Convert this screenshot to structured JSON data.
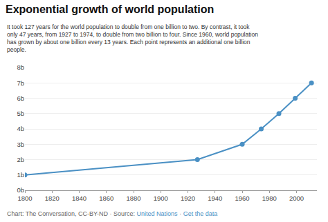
{
  "chart_data": {
    "type": "line",
    "title": "Exponential growth of world population",
    "subtitle": [
      "It took 127 years for the world population to double from one billion to two. By contrast, it took",
      "only 47 years, from 1927 to 1974, to double from two billion to four. Since 1960, world population",
      "has grown by about one billion every 13 years. Each point represents an additional one billion",
      "people."
    ],
    "footer": [
      {
        "text": "Chart: The Conversation, CC-BY-ND · Source: ",
        "color": "#666666"
      },
      {
        "text": "United Nations",
        "color": "#4a90c4"
      },
      {
        "text": " · ",
        "color": "#666666"
      },
      {
        "text": "Get the data",
        "color": "#4a90c4"
      }
    ],
    "x": [
      1800,
      1927,
      1960,
      1974,
      1987,
      1999,
      2011
    ],
    "values": [
      1,
      2,
      3,
      4,
      5,
      6,
      7
    ],
    "color": "#4a90c4",
    "marker": "circle",
    "xlim": [
      1800,
      2015
    ],
    "ylim": [
      0,
      8
    ],
    "xticks": [
      1800,
      1820,
      1840,
      1860,
      1880,
      1900,
      1920,
      1940,
      1960,
      1980,
      2000
    ],
    "yticks": [
      {
        "value": 0,
        "label": "0b"
      },
      {
        "value": 1,
        "label": "1b"
      },
      {
        "value": 2,
        "label": "2b"
      },
      {
        "value": 3,
        "label": "3b"
      },
      {
        "value": 4,
        "label": "4b"
      },
      {
        "value": 5,
        "label": "5b"
      },
      {
        "value": 6,
        "label": "6b"
      },
      {
        "value": 7,
        "label": "7b"
      },
      {
        "value": 8,
        "label": "8b"
      }
    ],
    "grid": "y"
  }
}
